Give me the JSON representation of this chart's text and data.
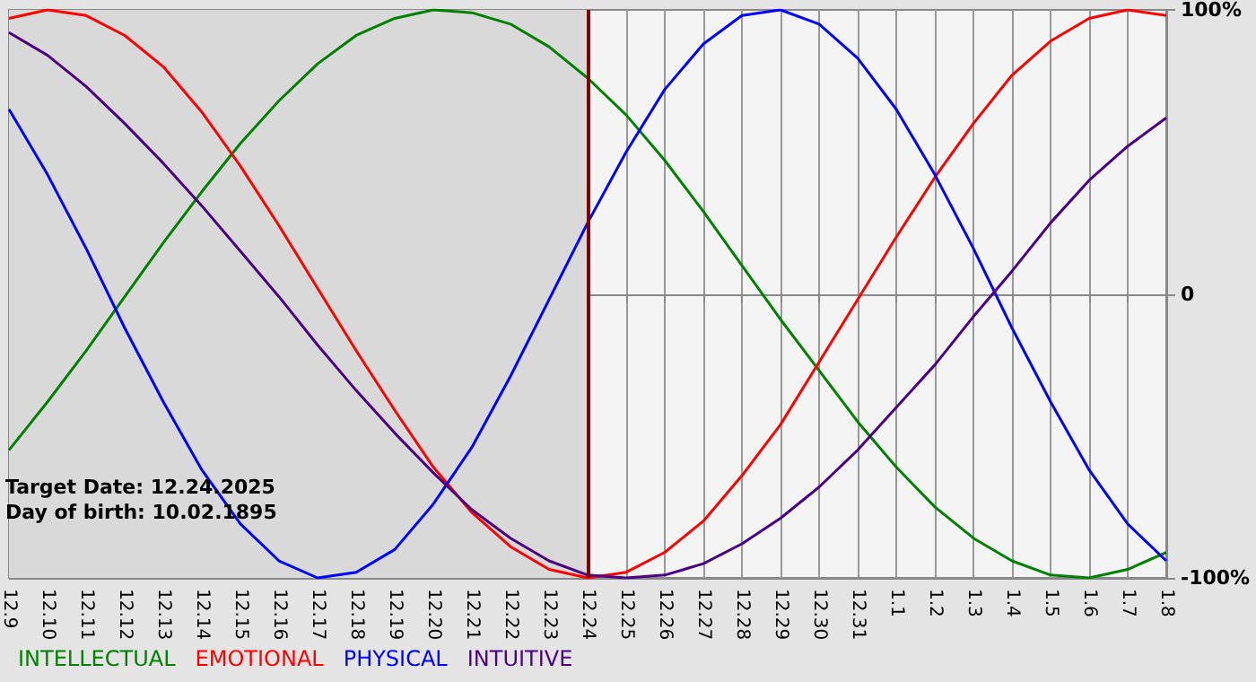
{
  "chart_data": {
    "type": "line",
    "categories": [
      "12.9",
      "12.10",
      "12.11",
      "12.12",
      "12.13",
      "12.14",
      "12.15",
      "12.16",
      "12.17",
      "12.18",
      "12.19",
      "12.20",
      "12.21",
      "12.22",
      "12.23",
      "12.24",
      "12.25",
      "12.26",
      "12.27",
      "12.28",
      "12.29",
      "12.30",
      "12.31",
      "1.1",
      "1.2",
      "1.3",
      "1.4",
      "1.5",
      "1.6",
      "1.7",
      "1.8"
    ],
    "series": [
      {
        "name": "INTELLECTUAL",
        "color": "#008000",
        "values": [
          -55,
          -38,
          -20,
          -1,
          18,
          36,
          53,
          68,
          81,
          91,
          97,
          100,
          99,
          95,
          87,
          76,
          63,
          47,
          29,
          10,
          -9,
          -27,
          -45,
          -61,
          -75,
          -86,
          -94,
          -99,
          -100,
          -97,
          -91
        ]
      },
      {
        "name": "EMOTIONAL",
        "color": "#ff0000",
        "values": [
          97,
          100,
          98,
          91,
          80,
          64,
          45,
          24,
          2,
          -20,
          -41,
          -61,
          -77,
          -89,
          -97,
          -100,
          -98,
          -91,
          -80,
          -64,
          -46,
          -24,
          -2,
          20,
          41,
          60,
          77,
          89,
          97,
          100,
          98
        ]
      },
      {
        "name": "PHYSICAL",
        "color": "#0000ff",
        "values": [
          65,
          42,
          16,
          -12,
          -38,
          -62,
          -81,
          -94,
          -100,
          -98,
          -90,
          -74,
          -54,
          -29,
          -2,
          25,
          50,
          72,
          88,
          98,
          100,
          95,
          83,
          65,
          42,
          16,
          -12,
          -38,
          -62,
          -81,
          -94
        ]
      },
      {
        "name": "INTUITIVE",
        "color": "#4b0082",
        "values": [
          92,
          84,
          73,
          60,
          46,
          31,
          15,
          -1,
          -18,
          -34,
          -49,
          -63,
          -76,
          -86,
          -94,
          -99,
          -100,
          -99,
          -95,
          -88,
          -79,
          -68,
          -55,
          -40,
          -25,
          -8,
          8,
          25,
          40,
          52,
          62
        ]
      }
    ],
    "ylim": [
      -100,
      100
    ],
    "yticks": [
      {
        "value": -100,
        "label": "-100%"
      },
      {
        "value": 0,
        "label": "0"
      },
      {
        "value": 100,
        "label": "100%"
      }
    ],
    "ref_lines": [
      {
        "axis": "x",
        "value": "12.24",
        "color": "#800000"
      }
    ],
    "bands": [
      {
        "axis": "x",
        "from": "12.9",
        "to": "12.24",
        "color": "#d9d9d9"
      }
    ],
    "annotations": [
      "Target Date: 12.24.2025",
      "Day of birth: 10.02.1895"
    ],
    "grid": true,
    "legend": "bottom left",
    "marker": "none"
  }
}
